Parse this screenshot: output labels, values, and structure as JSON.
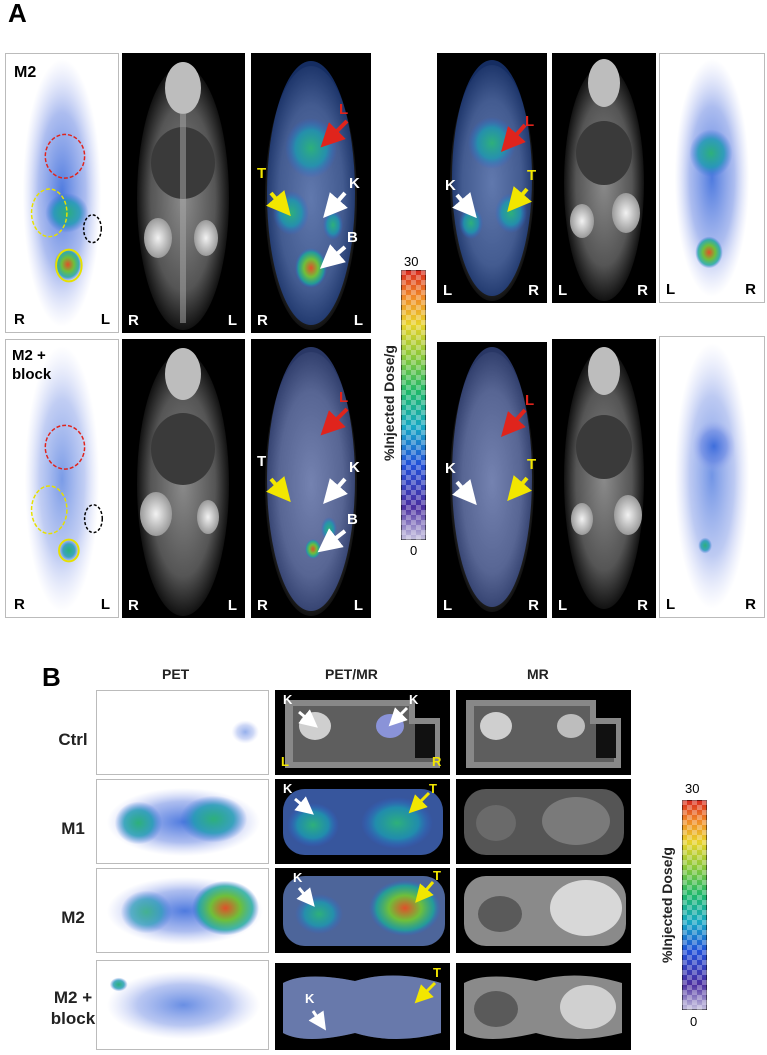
{
  "panel_a": {
    "letter": "A",
    "colorbar": {
      "max": "30",
      "min": "0",
      "label": "%Injected  Dose/g"
    },
    "rows": [
      {
        "condition": "M2",
        "left_tiles": [
          {
            "corner_left": "R",
            "corner_right": "L"
          },
          {
            "corner_left": "R",
            "corner_right": "L"
          },
          {
            "corner_left": "R",
            "corner_right": "L",
            "tags": [
              "L",
              "T",
              "K",
              "B"
            ]
          }
        ],
        "right_tiles": [
          {
            "corner_left": "L",
            "corner_right": "R",
            "tags": [
              "L",
              "K",
              "T"
            ]
          },
          {
            "corner_left": "L",
            "corner_right": "R"
          },
          {
            "corner_left": "L",
            "corner_right": "R"
          }
        ]
      },
      {
        "condition_line1": "M2 +",
        "condition_line2": "block",
        "left_tiles": [
          {
            "corner_left": "R",
            "corner_right": "L"
          },
          {
            "corner_left": "R",
            "corner_right": "L"
          },
          {
            "corner_left": "R",
            "corner_right": "L",
            "tags": [
              "L",
              "T",
              "K",
              "B"
            ]
          }
        ],
        "right_tiles": [
          {
            "corner_left": "L",
            "corner_right": "R",
            "tags": [
              "L",
              "K",
              "T"
            ]
          },
          {
            "corner_left": "L",
            "corner_right": "R"
          },
          {
            "corner_left": "L",
            "corner_right": "R"
          }
        ]
      }
    ]
  },
  "panel_b": {
    "letter": "B",
    "columns": [
      "PET",
      "PET/MR",
      "MR"
    ],
    "rows": [
      {
        "label": "Ctrl",
        "tags": [
          "K",
          "K",
          "L",
          "R"
        ]
      },
      {
        "label": "M1",
        "tags": [
          "K",
          "T"
        ]
      },
      {
        "label": "M2",
        "tags": [
          "K",
          "T"
        ]
      },
      {
        "label_line1": "M2 +",
        "label_line2": "block",
        "tags": [
          "K",
          "T"
        ]
      }
    ],
    "colorbar": {
      "max": "30",
      "min": "0",
      "label": "%Injected  Dose/g"
    }
  },
  "colors": {
    "red_arrow": "#e0241c",
    "yellow_arrow": "#f2e600",
    "white_arrow": "#ffffff",
    "red_roi": "#e0241c",
    "yellow_roi": "#e6e000",
    "black_roi": "#000000"
  }
}
